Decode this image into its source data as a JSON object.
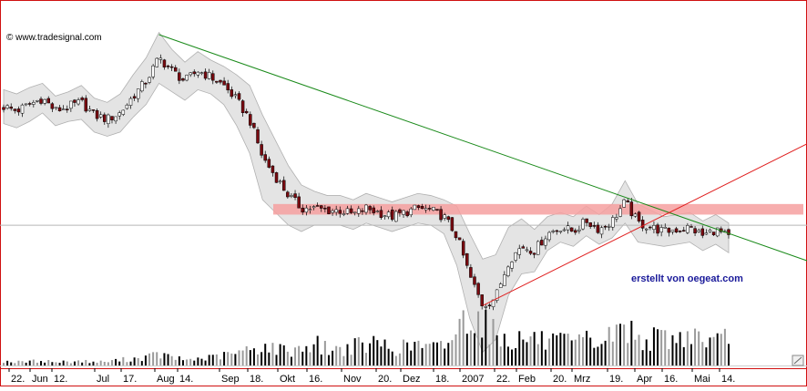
{
  "chart_data": {
    "type": "candlestick",
    "watermark": "© www.tradesignal.com",
    "annotation": "erstellt von oegeat.com",
    "x_tick_labels": [
      "22.",
      "Jun",
      "12.",
      "Jul",
      "17.",
      "Aug",
      "14.",
      "Sep",
      "18.",
      "Okt",
      "16.",
      "Nov",
      "20.",
      "Dez",
      "18.",
      "2007",
      "22.",
      "Feb",
      "20.",
      "Mrz",
      "19.",
      "Apr",
      "16.",
      "Mai",
      "14."
    ],
    "price_series_shape": [
      0.66,
      0.64,
      0.67,
      0.7,
      0.64,
      0.66,
      0.68,
      0.62,
      0.6,
      0.63,
      0.71,
      0.78,
      0.89,
      0.83,
      0.78,
      0.83,
      0.8,
      0.76,
      0.69,
      0.6,
      0.42,
      0.33,
      0.24,
      0.18,
      0.18,
      0.17,
      0.17,
      0.15,
      0.18,
      0.16,
      0.14,
      0.16,
      0.18,
      0.17,
      0.14,
      0.05,
      -0.14,
      -0.28,
      -0.24,
      -0.07,
      0.0,
      -0.02,
      0.06,
      0.09,
      0.07,
      0.12,
      0.08,
      0.12,
      0.21,
      0.11,
      0.09,
      0.07,
      0.08,
      0.09,
      0.05,
      0.08,
      0.04
    ],
    "volume_shape": [
      0.08,
      0.06,
      0.07,
      0.09,
      0.06,
      0.07,
      0.08,
      0.06,
      0.07,
      0.1,
      0.12,
      0.15,
      0.2,
      0.14,
      0.1,
      0.12,
      0.14,
      0.18,
      0.22,
      0.28,
      0.35,
      0.3,
      0.26,
      0.32,
      0.4,
      0.3,
      0.28,
      0.36,
      0.34,
      0.42,
      0.3,
      0.33,
      0.38,
      0.3,
      0.36,
      0.62,
      1.0,
      0.82,
      0.55,
      0.45,
      0.48,
      0.5,
      0.4,
      0.42,
      0.38,
      0.45,
      0.4,
      0.55,
      0.7,
      0.5,
      0.46,
      0.52,
      0.44,
      0.6,
      0.48,
      0.4,
      0.5
    ],
    "bollinger_half_width_shape": [
      0.08,
      0.08,
      0.08,
      0.07,
      0.07,
      0.07,
      0.08,
      0.08,
      0.08,
      0.09,
      0.1,
      0.11,
      0.12,
      0.1,
      0.09,
      0.09,
      0.08,
      0.09,
      0.12,
      0.16,
      0.2,
      0.17,
      0.14,
      0.11,
      0.08,
      0.07,
      0.07,
      0.07,
      0.07,
      0.07,
      0.07,
      0.07,
      0.07,
      0.07,
      0.08,
      0.14,
      0.2,
      0.22,
      0.2,
      0.16,
      0.13,
      0.1,
      0.08,
      0.07,
      0.07,
      0.07,
      0.07,
      0.08,
      0.1,
      0.09,
      0.08,
      0.07,
      0.07,
      0.07,
      0.07,
      0.07,
      0.07
    ],
    "horizontal_reference_line": {
      "level": 0.1,
      "color": "#b8b8b8"
    },
    "resistance_zone": {
      "from": 0.15,
      "to": 0.2,
      "color": "#f6a0a0"
    },
    "trendlines": [
      {
        "name": "downtrend",
        "from": [
          12,
          1.0
        ],
        "to": [
          57,
          0.04
        ],
        "color": "#1a8a1a"
      },
      {
        "name": "uptrend",
        "from": [
          37,
          -0.28
        ],
        "to": [
          57,
          0.33
        ],
        "color": "#e02020"
      }
    ],
    "colors": {
      "up_candle": "#ffffff",
      "down_candle": "#7a0a10",
      "band_fill": "#e4e4e4",
      "volume": "#000000",
      "frame": "#d01010"
    }
  }
}
